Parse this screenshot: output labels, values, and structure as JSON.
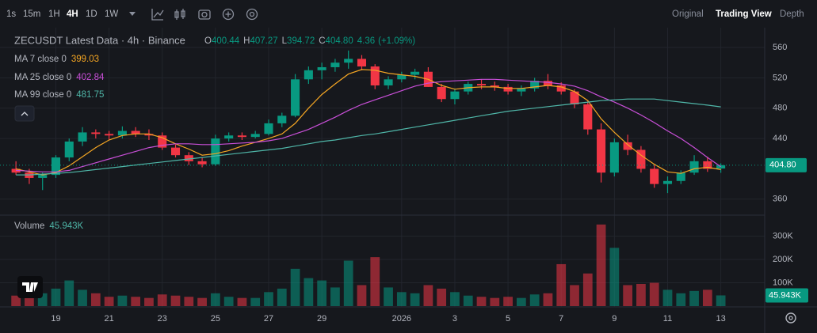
{
  "toolbar": {
    "intervals": [
      "1s",
      "15m",
      "1H",
      "4H",
      "1D",
      "1W"
    ],
    "views": [
      "Original",
      "Trading View",
      "Depth"
    ]
  },
  "chart_data": {
    "type": "candlestick",
    "title": "ZECUSDT Latest Data · 4h · Binance",
    "ohlc_legend": [
      {
        "key": "O",
        "value": 400.44
      },
      {
        "key": "H",
        "value": 407.27
      },
      {
        "key": "L",
        "value": 394.72
      },
      {
        "key": "C",
        "value": 404.8,
        "label": "404.80"
      }
    ],
    "change": 4.36,
    "change_pct": {
      "value": 1.09,
      "label": "(+1.09%)"
    },
    "categories": [
      null,
      null,
      null,
      null,
      null,
      null,
      null,
      null,
      null,
      null,
      null,
      null,
      null,
      null,
      null,
      null,
      null,
      null,
      null,
      null,
      null,
      null,
      null,
      null,
      null,
      null,
      null,
      null,
      null,
      null,
      null,
      null,
      null,
      null,
      null,
      null,
      null,
      null,
      null,
      null,
      null,
      null,
      null,
      null,
      null,
      null,
      null,
      null,
      null,
      null,
      null,
      null,
      null,
      null
    ],
    "open": [
      400,
      395,
      388,
      392,
      415,
      436,
      448,
      446,
      444,
      450,
      446,
      444,
      428,
      418,
      410,
      406,
      440,
      444,
      442,
      446,
      460,
      470,
      518,
      530,
      534,
      540,
      545,
      535,
      510,
      518,
      524,
      528,
      508,
      492,
      502,
      512,
      510,
      508,
      502,
      506,
      516,
      510,
      502,
      485,
      452,
      395,
      435,
      425,
      400,
      380,
      384,
      395,
      410,
      400.44
    ],
    "high": [
      410,
      400,
      395,
      418,
      440,
      455,
      452,
      450,
      456,
      455,
      452,
      448,
      432,
      422,
      415,
      445,
      448,
      448,
      450,
      465,
      474,
      525,
      535,
      540,
      545,
      556,
      550,
      538,
      522,
      528,
      532,
      534,
      512,
      506,
      515,
      518,
      515,
      512,
      510,
      520,
      525,
      514,
      505,
      490,
      460,
      440,
      445,
      430,
      405,
      390,
      398,
      418,
      416,
      407.27
    ],
    "low": [
      392,
      380,
      372,
      388,
      410,
      430,
      440,
      438,
      440,
      442,
      438,
      425,
      415,
      405,
      402,
      404,
      436,
      438,
      440,
      444,
      455,
      468,
      512,
      518,
      528,
      532,
      530,
      505,
      505,
      514,
      518,
      508,
      488,
      485,
      498,
      505,
      503,
      498,
      496,
      502,
      505,
      498,
      480,
      445,
      382,
      390,
      418,
      395,
      375,
      368,
      380,
      392,
      396,
      394.72
    ],
    "close": [
      395,
      388,
      392,
      415,
      436,
      448,
      446,
      444,
      450,
      446,
      444,
      428,
      418,
      410,
      406,
      440,
      444,
      442,
      446,
      460,
      470,
      518,
      530,
      534,
      540,
      545,
      535,
      510,
      518,
      524,
      528,
      508,
      492,
      502,
      512,
      510,
      508,
      502,
      506,
      516,
      510,
      502,
      485,
      452,
      395,
      435,
      425,
      400,
      380,
      384,
      395,
      410,
      400,
      404.8
    ],
    "up_color": "#089981",
    "down_color": "#f23645",
    "ma": [
      {
        "name": "MA 7 close 0",
        "color": "#f5a623",
        "values": [
          400,
          396,
          392,
          395,
          404,
          416,
          428,
          438,
          444,
          446,
          446,
          441,
          433,
          426,
          418,
          420,
          424,
          430,
          435,
          440,
          446,
          460,
          480,
          498,
          512,
          525,
          531,
          530,
          526,
          524,
          522,
          518,
          510,
          505,
          507,
          508,
          508,
          506,
          506,
          508,
          510,
          508,
          502,
          490,
          466,
          448,
          432,
          418,
          406,
          396,
          394,
          400,
          402,
          399.03
        ]
      },
      {
        "name": "MA 25 close 0",
        "color": "#c94fd8",
        "values": [
          398,
          397,
          396,
          396,
          398,
          403,
          408,
          413,
          418,
          423,
          428,
          431,
          433,
          433,
          432,
          432,
          433,
          434,
          435,
          437,
          440,
          446,
          452,
          460,
          468,
          477,
          485,
          491,
          497,
          503,
          509,
          513,
          515,
          516,
          517,
          518,
          518,
          517,
          516,
          515,
          514,
          512,
          509,
          503,
          495,
          488,
          480,
          471,
          461,
          450,
          440,
          428,
          415,
          402.84
        ]
      },
      {
        "name": "MA 99 close 0",
        "color": "#4fb6a8",
        "values": [
          392,
          392,
          393,
          394,
          395,
          397,
          399,
          401,
          403,
          405,
          407,
          409,
          411,
          413,
          415,
          417,
          419,
          421,
          423,
          425,
          427,
          430,
          433,
          436,
          438,
          441,
          444,
          446,
          449,
          452,
          455,
          458,
          461,
          464,
          467,
          470,
          473,
          476,
          478,
          480,
          482,
          484,
          486,
          488,
          490,
          491,
          492,
          492,
          492,
          490,
          488,
          486,
          484,
          481.75
        ]
      }
    ],
    "last_price": {
      "value": 404.8,
      "label": "404.80"
    },
    "ylim": [
      341,
      583
    ],
    "yticks": [
      360,
      440,
      480,
      520,
      560
    ],
    "volume": {
      "name": "Volume",
      "values": [
        45000,
        60000,
        55000,
        75000,
        110000,
        70000,
        55000,
        40000,
        45000,
        40000,
        35000,
        50000,
        45000,
        40000,
        35000,
        55000,
        40000,
        35000,
        35000,
        60000,
        75000,
        160000,
        120000,
        110000,
        80000,
        195000,
        90000,
        210000,
        80000,
        60000,
        55000,
        90000,
        75000,
        60000,
        45000,
        40000,
        35000,
        40000,
        35000,
        50000,
        55000,
        180000,
        90000,
        140000,
        350000,
        250000,
        90000,
        95000,
        100000,
        70000,
        55000,
        65000,
        70000,
        45943
      ],
      "last": {
        "value": 45943,
        "label": "45.943K"
      },
      "ylim": [
        0,
        380000
      ],
      "yticks": [
        {
          "value": 100000,
          "label": "100K"
        },
        {
          "value": 200000,
          "label": "200K"
        },
        {
          "value": 300000,
          "label": "300K"
        }
      ]
    },
    "xlim": [
      -1.2,
      56.3
    ],
    "xticks": [
      {
        "value": 3,
        "label": "19"
      },
      {
        "value": 7,
        "label": "21"
      },
      {
        "value": 11,
        "label": "23"
      },
      {
        "value": 15,
        "label": "25"
      },
      {
        "value": 19,
        "label": "27"
      },
      {
        "value": 23,
        "label": "29"
      },
      {
        "value": 29,
        "label": "2026"
      },
      {
        "value": 33,
        "label": "3"
      },
      {
        "value": 37,
        "label": "5"
      },
      {
        "value": 41,
        "label": "7"
      },
      {
        "value": 45,
        "label": "9"
      },
      {
        "value": 49,
        "label": "11"
      },
      {
        "value": 53,
        "label": "13"
      }
    ],
    "grid": true
  }
}
